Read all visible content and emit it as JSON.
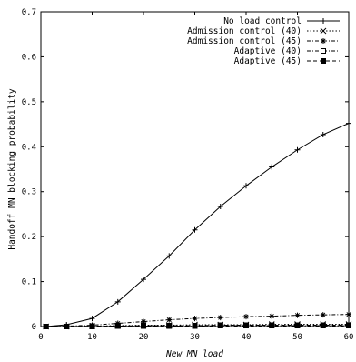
{
  "chart_data": {
    "type": "line",
    "xlabel": "New MN load",
    "ylabel": "Handoff MN blocking probability",
    "xlim": [
      0,
      60
    ],
    "ylim": [
      0,
      0.7
    ],
    "x_ticks": [
      0,
      10,
      20,
      30,
      40,
      50,
      60
    ],
    "y_ticks": [
      0,
      0.1,
      0.2,
      0.3,
      0.4,
      0.5,
      0.6,
      0.7
    ],
    "x_tick_labels": [
      "0",
      "10",
      "20",
      "30",
      "40",
      "50",
      "60"
    ],
    "y_tick_labels": [
      "0",
      "0.1",
      "0.2",
      "0.3",
      "0.4",
      "0.5",
      "0.6",
      "0.7"
    ],
    "grid": false,
    "legend_position": "top-right",
    "x": [
      1,
      5,
      10,
      15,
      20,
      25,
      30,
      35,
      40,
      45,
      50,
      55,
      60
    ],
    "series": [
      {
        "name": "No load control",
        "marker": "plus",
        "line": "solid",
        "values": [
          0.0,
          0.004,
          0.018,
          0.055,
          0.105,
          0.157,
          0.215,
          0.267,
          0.313,
          0.355,
          0.393,
          0.427,
          0.452
        ]
      },
      {
        "name": "Admission control (40)",
        "marker": "cross",
        "line": "dotted",
        "values": [
          0.0,
          0.0,
          0.001,
          0.002,
          0.003,
          0.003,
          0.004,
          0.004,
          0.004,
          0.005,
          0.005,
          0.005,
          0.005
        ]
      },
      {
        "name": "Admission control (45)",
        "marker": "star",
        "line": "dashdot",
        "values": [
          0.0,
          0.001,
          0.003,
          0.007,
          0.011,
          0.015,
          0.018,
          0.02,
          0.022,
          0.023,
          0.025,
          0.026,
          0.027
        ]
      },
      {
        "name": "Adaptive (40)",
        "marker": "square-open",
        "line": "dashdot",
        "values": [
          0.0,
          0.0,
          0.0,
          0.001,
          0.001,
          0.001,
          0.001,
          0.002,
          0.002,
          0.002,
          0.002,
          0.002,
          0.002
        ]
      },
      {
        "name": "Adaptive (45)",
        "marker": "square-filled",
        "line": "dashed",
        "values": [
          0.0,
          0.0,
          0.001,
          0.001,
          0.002,
          0.002,
          0.002,
          0.003,
          0.003,
          0.003,
          0.003,
          0.003,
          0.003
        ]
      }
    ],
    "colors": {
      "ink": "#000000",
      "background": "#ffffff"
    }
  }
}
